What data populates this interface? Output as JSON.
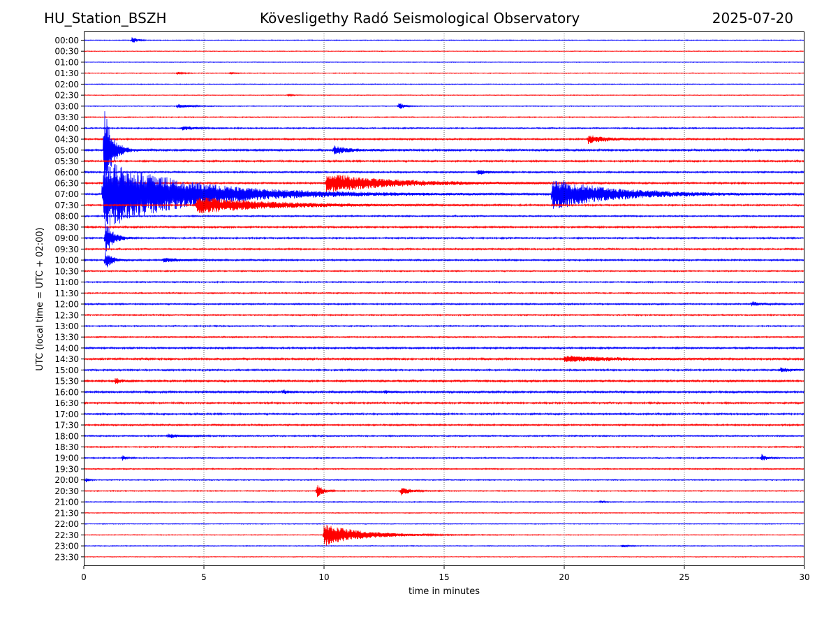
{
  "header": {
    "station": "HU_Station_BSZH",
    "title": "Kövesligethy Radó Seismological Observatory",
    "date": "2025-07-20"
  },
  "chart_data": {
    "type": "line",
    "title": "Kövesligethy Radó Seismological Observatory",
    "xlabel": "time in minutes",
    "ylabel": "UTC (local time = UTC + 02:00)",
    "xlim": [
      0,
      30
    ],
    "xticks": [
      0,
      5,
      10,
      15,
      20,
      25,
      30
    ],
    "grid": "vertical dotted at every 5 minutes",
    "colors": {
      "even_rows": "#0000ff",
      "odd_rows": "#ff0000"
    },
    "row_labels": [
      "00:00",
      "00:30",
      "01:00",
      "01:30",
      "02:00",
      "02:30",
      "03:00",
      "03:30",
      "04:00",
      "04:30",
      "05:00",
      "05:30",
      "06:00",
      "06:30",
      "07:00",
      "07:30",
      "08:00",
      "08:30",
      "09:00",
      "09:30",
      "10:00",
      "10:30",
      "11:00",
      "11:30",
      "12:00",
      "12:30",
      "13:00",
      "13:30",
      "14:00",
      "14:30",
      "15:00",
      "15:30",
      "16:00",
      "16:30",
      "17:00",
      "17:30",
      "18:00",
      "18:30",
      "19:00",
      "19:30",
      "20:00",
      "20:30",
      "21:00",
      "21:30",
      "22:00",
      "22:30",
      "23:00",
      "23:30"
    ],
    "base_noise": [
      0.6,
      0.5,
      0.5,
      0.6,
      0.6,
      0.5,
      0.6,
      0.8,
      1.0,
      1.2,
      1.6,
      1.3,
      1.2,
      1.3,
      1.3,
      1.2,
      1.1,
      1.3,
      1.2,
      1.2,
      1.2,
      1.0,
      1.0,
      1.0,
      1.1,
      1.0,
      1.0,
      1.0,
      1.3,
      1.5,
      1.3,
      1.5,
      1.5,
      1.3,
      1.3,
      1.2,
      1.0,
      1.0,
      1.0,
      0.9,
      0.8,
      0.8,
      0.7,
      0.6,
      0.6,
      0.6,
      0.6,
      0.5
    ],
    "events": [
      {
        "row": 0,
        "t": 2.0,
        "amp": 5,
        "dur": 0.4
      },
      {
        "row": 3,
        "t": 3.9,
        "amp": 2,
        "dur": 0.4
      },
      {
        "row": 3,
        "t": 6.1,
        "amp": 2,
        "dur": 0.3
      },
      {
        "row": 5,
        "t": 8.5,
        "amp": 2,
        "dur": 0.3
      },
      {
        "row": 6,
        "t": 3.9,
        "amp": 3,
        "dur": 1.0
      },
      {
        "row": 6,
        "t": 13.1,
        "amp": 6,
        "dur": 0.4
      },
      {
        "row": 8,
        "t": 4.1,
        "amp": 3,
        "dur": 1.0
      },
      {
        "row": 9,
        "t": 21.0,
        "amp": 6,
        "dur": 1.5
      },
      {
        "row": 10,
        "t": 0.85,
        "amp": 70,
        "dur": 0.6
      },
      {
        "row": 10,
        "t": 10.4,
        "amp": 6,
        "dur": 1.3
      },
      {
        "row": 12,
        "t": 16.4,
        "amp": 4,
        "dur": 0.8
      },
      {
        "row": 13,
        "t": 10.1,
        "amp": 14,
        "dur": 5.0
      },
      {
        "row": 14,
        "t": 0.8,
        "amp": 50,
        "dur": 7.0
      },
      {
        "row": 14,
        "t": 19.5,
        "amp": 22,
        "dur": 5.0
      },
      {
        "row": 15,
        "t": 4.7,
        "amp": 12,
        "dur": 6.0
      },
      {
        "row": 18,
        "t": 0.9,
        "amp": 25,
        "dur": 0.6
      },
      {
        "row": 20,
        "t": 0.9,
        "amp": 14,
        "dur": 0.5
      },
      {
        "row": 20,
        "t": 3.3,
        "amp": 3,
        "dur": 1.5
      },
      {
        "row": 24,
        "t": 27.8,
        "amp": 3,
        "dur": 0.8
      },
      {
        "row": 29,
        "t": 20.0,
        "amp": 4,
        "dur": 4.0
      },
      {
        "row": 30,
        "t": 29.0,
        "amp": 3,
        "dur": 1.0
      },
      {
        "row": 31,
        "t": 1.3,
        "amp": 4,
        "dur": 0.5
      },
      {
        "row": 32,
        "t": 8.3,
        "amp": 3,
        "dur": 0.4
      },
      {
        "row": 32,
        "t": 12.5,
        "amp": 3,
        "dur": 0.4
      },
      {
        "row": 36,
        "t": 3.5,
        "amp": 3,
        "dur": 1.2
      },
      {
        "row": 38,
        "t": 1.6,
        "amp": 4,
        "dur": 0.3
      },
      {
        "row": 38,
        "t": 28.2,
        "amp": 6,
        "dur": 0.4
      },
      {
        "row": 40,
        "t": 0.1,
        "amp": 3,
        "dur": 0.2
      },
      {
        "row": 41,
        "t": 9.7,
        "amp": 10,
        "dur": 0.5
      },
      {
        "row": 41,
        "t": 13.2,
        "amp": 6,
        "dur": 0.8
      },
      {
        "row": 42,
        "t": 21.5,
        "amp": 2,
        "dur": 0.3
      },
      {
        "row": 45,
        "t": 10.0,
        "amp": 16,
        "dur": 3.0
      },
      {
        "row": 46,
        "t": 22.4,
        "amp": 2,
        "dur": 0.5
      }
    ]
  }
}
